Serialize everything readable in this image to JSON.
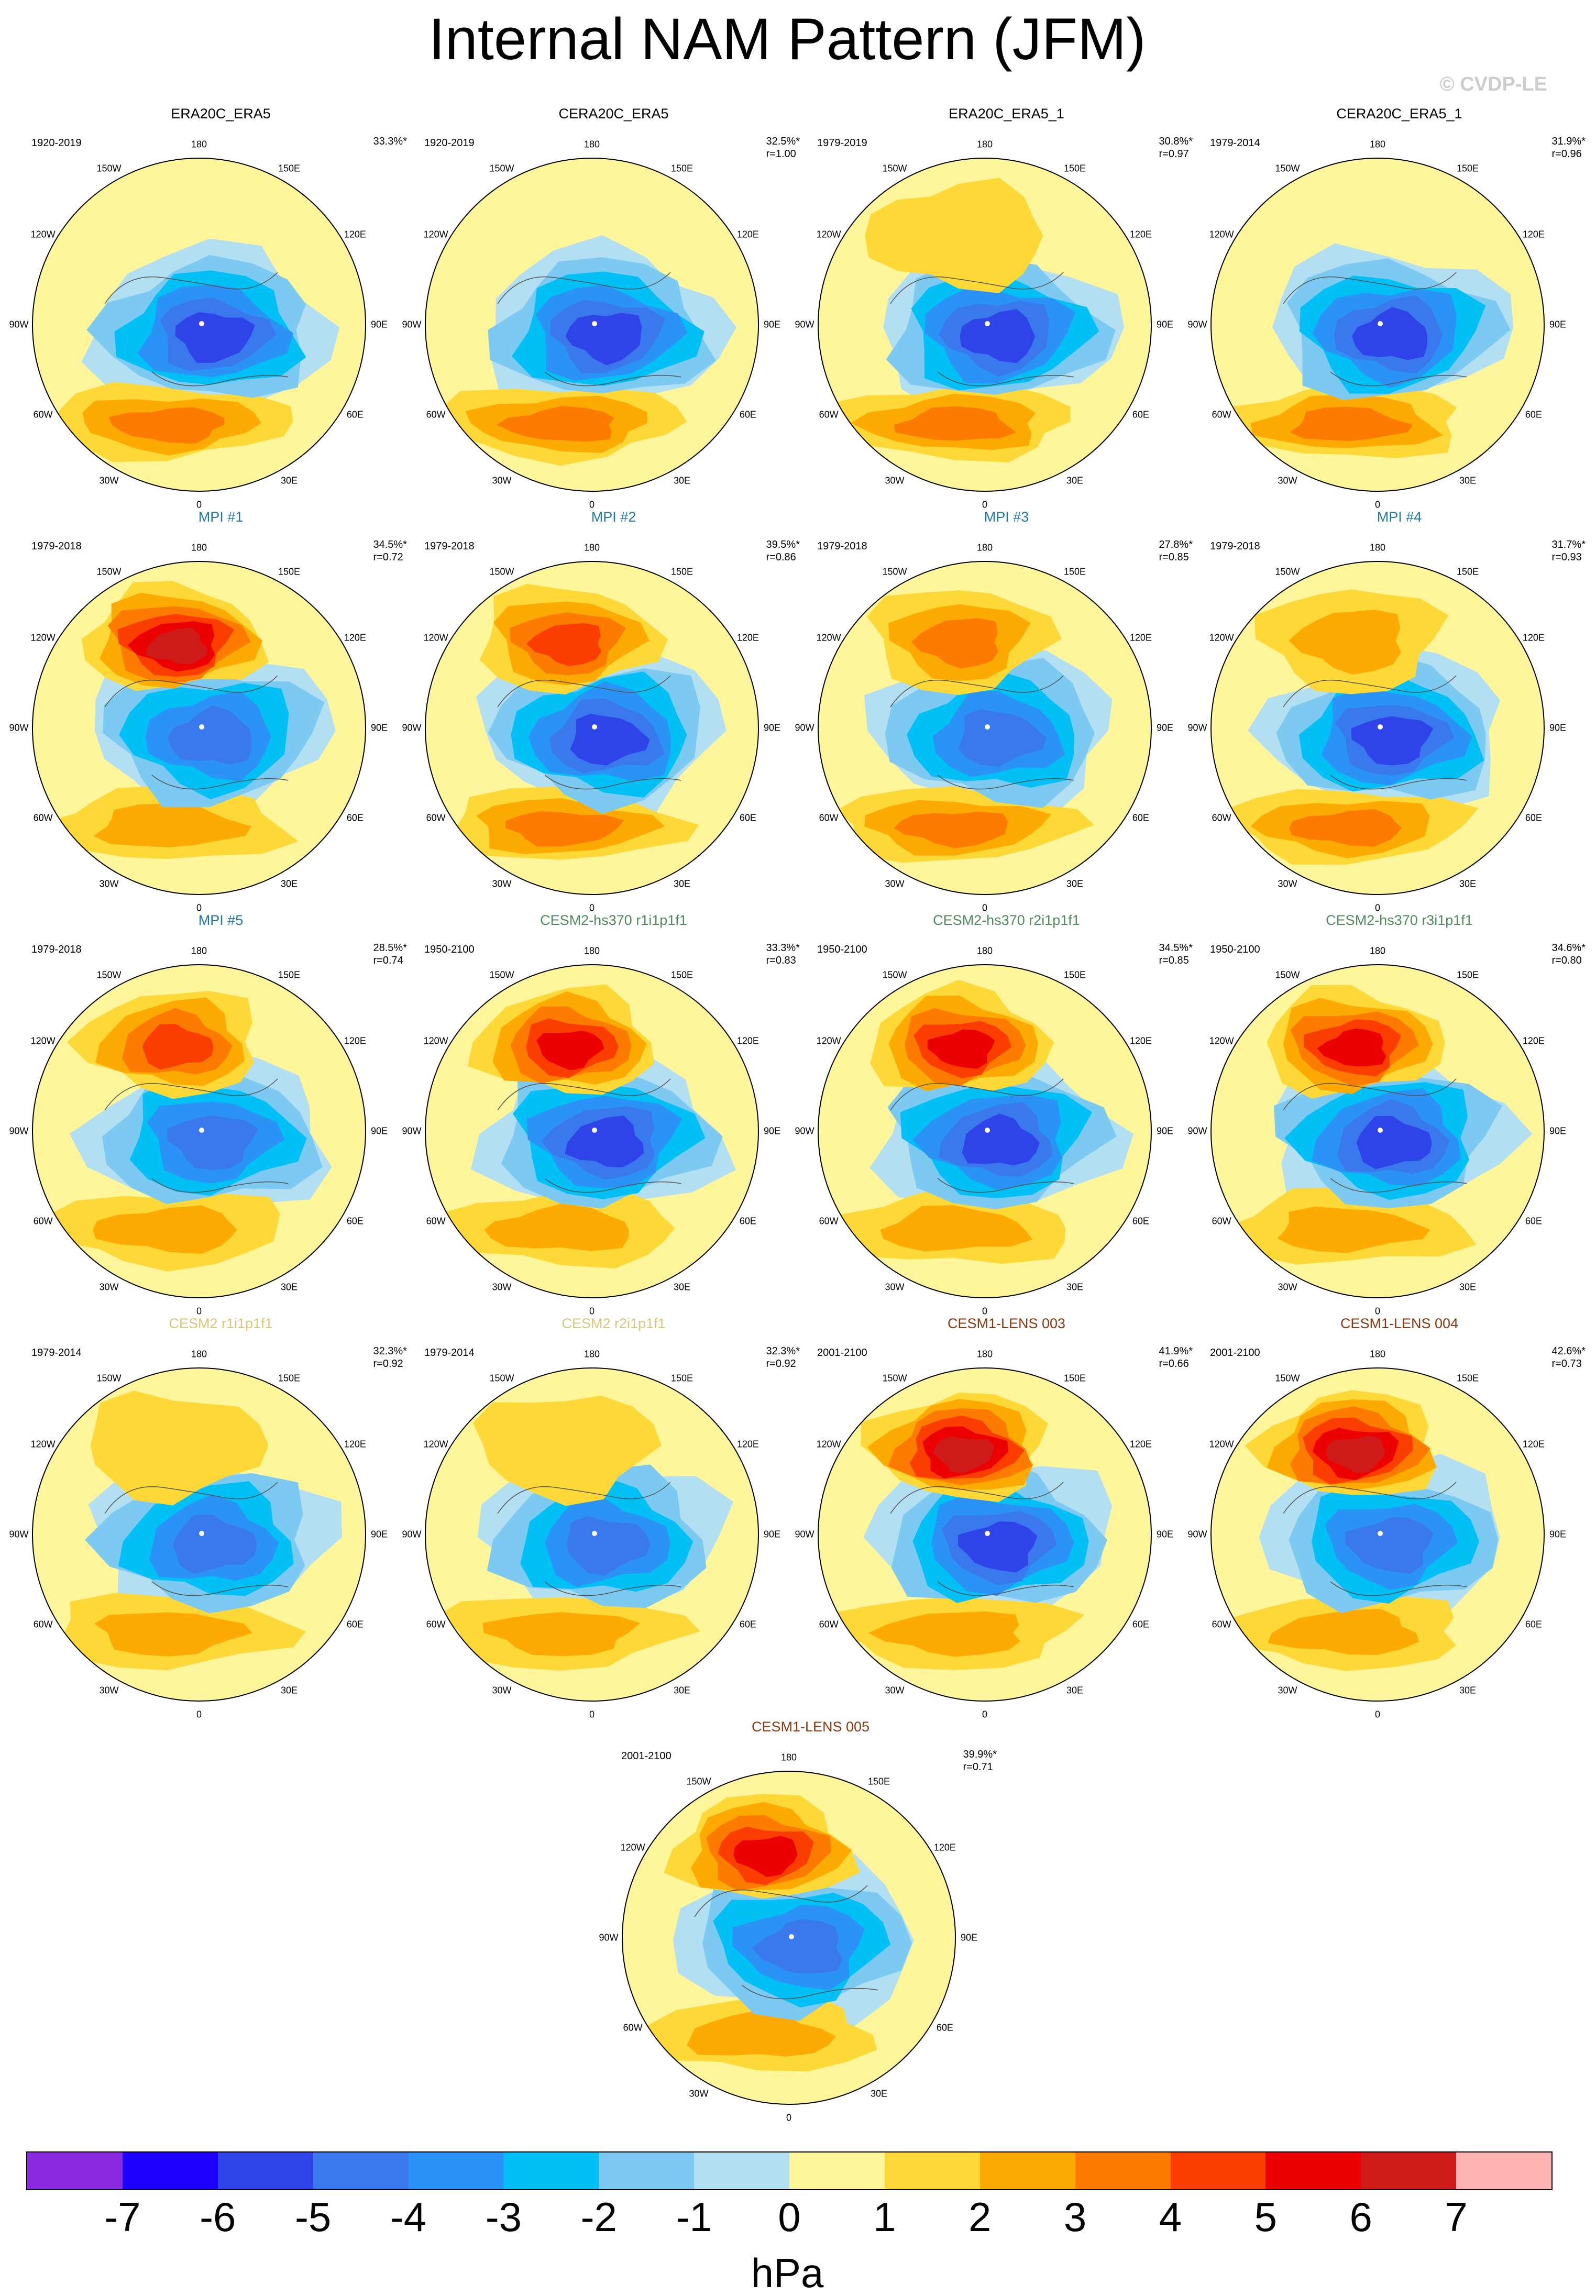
{
  "title": "Internal NAM Pattern (JFM)",
  "copyright": "© CVDP-LE",
  "lon_labels": [
    "180",
    "150E",
    "120E",
    "90E",
    "60E",
    "30E",
    "0",
    "30W",
    "60W",
    "90W",
    "120W",
    "150W"
  ],
  "colorbar": {
    "unit": "hPa",
    "ticks": [
      "-7",
      "-6",
      "-5",
      "-4",
      "-3",
      "-2",
      "-1",
      "0",
      "1",
      "2",
      "3",
      "4",
      "5",
      "6",
      "7"
    ],
    "colors": [
      "#8a2be2",
      "#1e00ff",
      "#2e44e8",
      "#3a78ee",
      "#2a93f5",
      "#00c0f5",
      "#7ccaf1",
      "#b3dff2",
      "#fff59a",
      "#fdd836",
      "#fdab02",
      "#fd7c00",
      "#fb3d00",
      "#ec0000",
      "#cf1a1a",
      "#ffb3b3"
    ]
  },
  "panels": [
    {
      "title": "ERA20C_ERA5",
      "title_color": "#000000",
      "period": "1920-2019",
      "pct": "33.3%*",
      "r": ""
    },
    {
      "title": "CERA20C_ERA5",
      "title_color": "#000000",
      "period": "1920-2019",
      "pct": "32.5%*",
      "r": "r=1.00"
    },
    {
      "title": "ERA20C_ERA5_1",
      "title_color": "#000000",
      "period": "1979-2019",
      "pct": "30.8%*",
      "r": "r=0.97"
    },
    {
      "title": "CERA20C_ERA5_1",
      "title_color": "#000000",
      "period": "1979-2014",
      "pct": "31.9%*",
      "r": "r=0.96"
    },
    {
      "title": "MPI #1",
      "title_color": "#1f77a4",
      "period": "1979-2018",
      "pct": "34.5%*",
      "r": "r=0.72"
    },
    {
      "title": "MPI #2",
      "title_color": "#1f77a4",
      "period": "1979-2018",
      "pct": "39.5%*",
      "r": "r=0.86"
    },
    {
      "title": "MPI #3",
      "title_color": "#1f77a4",
      "period": "1979-2018",
      "pct": "27.8%*",
      "r": "r=0.85"
    },
    {
      "title": "MPI #4",
      "title_color": "#1f77a4",
      "period": "1979-2018",
      "pct": "31.7%*",
      "r": "r=0.93"
    },
    {
      "title": "MPI #5",
      "title_color": "#1f77a4",
      "period": "1979-2018",
      "pct": "28.5%*",
      "r": "r=0.74"
    },
    {
      "title": "CESM2-hs370 r1i1p1f1",
      "title_color": "#4f8a5a",
      "period": "1950-2100",
      "pct": "33.3%*",
      "r": "r=0.83"
    },
    {
      "title": "CESM2-hs370 r2i1p1f1",
      "title_color": "#4f8a5a",
      "period": "1950-2100",
      "pct": "34.5%*",
      "r": "r=0.85"
    },
    {
      "title": "CESM2-hs370 r3i1p1f1",
      "title_color": "#4f8a5a",
      "period": "1950-2100",
      "pct": "34.6%*",
      "r": "r=0.80"
    },
    {
      "title": "CESM2 r1i1p1f1",
      "title_color": "#d8c77a",
      "period": "1979-2014",
      "pct": "32.3%*",
      "r": "r=0.92"
    },
    {
      "title": "CESM2 r2i1p1f1",
      "title_color": "#d8c77a",
      "period": "1979-2014",
      "pct": "32.3%*",
      "r": "r=0.92"
    },
    {
      "title": "CESM1-LENS 003",
      "title_color": "#8b3a0f",
      "period": "2001-2100",
      "pct": "41.9%*",
      "r": "r=0.66"
    },
    {
      "title": "CESM1-LENS 004",
      "title_color": "#8b3a0f",
      "period": "2001-2100",
      "pct": "42.6%*",
      "r": "r=0.73"
    },
    {
      "title": "CESM1-LENS 005",
      "title_color": "#8b3a0f",
      "period": "2001-2100",
      "pct": "39.9%*",
      "r": "r=0.71"
    }
  ]
}
